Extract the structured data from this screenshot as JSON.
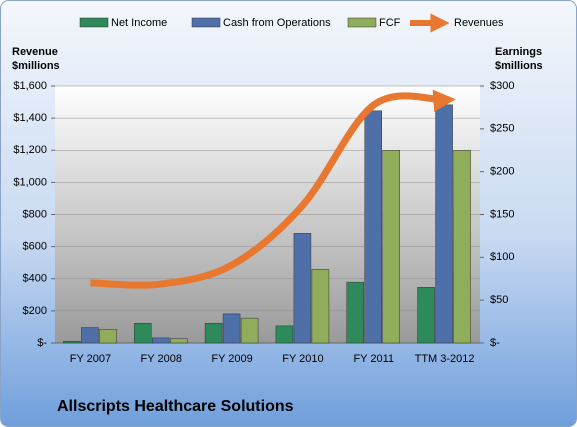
{
  "chart_data": {
    "type": "combo",
    "title": "Allscripts Healthcare Solutions",
    "y_label": [
      "Revenue",
      "$millions"
    ],
    "y2_label": [
      "Earnings",
      "$millions"
    ],
    "categories": [
      "FY 2007",
      "FY 2008",
      "FY 2009",
      "FY 2010",
      "FY 2011",
      "TTM 3-2012"
    ],
    "ylim": [
      0,
      1600
    ],
    "yticks": [
      {
        "value": 0,
        "label": "$-"
      },
      {
        "value": 200,
        "label": "$200"
      },
      {
        "value": 400,
        "label": "$400"
      },
      {
        "value": 600,
        "label": "$600"
      },
      {
        "value": 800,
        "label": "$800"
      },
      {
        "value": 1000,
        "label": "$1,000"
      },
      {
        "value": 1200,
        "label": "$1,200"
      },
      {
        "value": 1400,
        "label": "$1,400"
      },
      {
        "value": 1600,
        "label": "$1,600"
      }
    ],
    "y2lim": [
      0,
      300
    ],
    "y2ticks": [
      {
        "value": 0,
        "label": "$-"
      },
      {
        "value": 50,
        "label": "$50"
      },
      {
        "value": 100,
        "label": "$100"
      },
      {
        "value": 150,
        "label": "$150"
      },
      {
        "value": 200,
        "label": "$200"
      },
      {
        "value": 250,
        "label": "$250"
      },
      {
        "value": 300,
        "label": "$300"
      }
    ],
    "series": [
      {
        "name": "Net Income",
        "type": "bar",
        "axis": "y2",
        "color": "#2e8a5a",
        "values": [
          2,
          23,
          23,
          20,
          71,
          65
        ]
      },
      {
        "name": "Cash from Operations",
        "type": "bar",
        "axis": "y2",
        "color": "#4f6fa8",
        "values": [
          18,
          6,
          34,
          128,
          271,
          278
        ]
      },
      {
        "name": "FCF",
        "type": "bar",
        "axis": "y2",
        "color": "#8fad5a",
        "values": [
          16,
          5,
          29,
          86,
          225,
          225
        ]
      },
      {
        "name": "Revenues",
        "type": "line",
        "color": "#e8782f",
        "values": [
          374,
          367,
          486,
          859,
          1482,
          1513
        ]
      }
    ]
  }
}
